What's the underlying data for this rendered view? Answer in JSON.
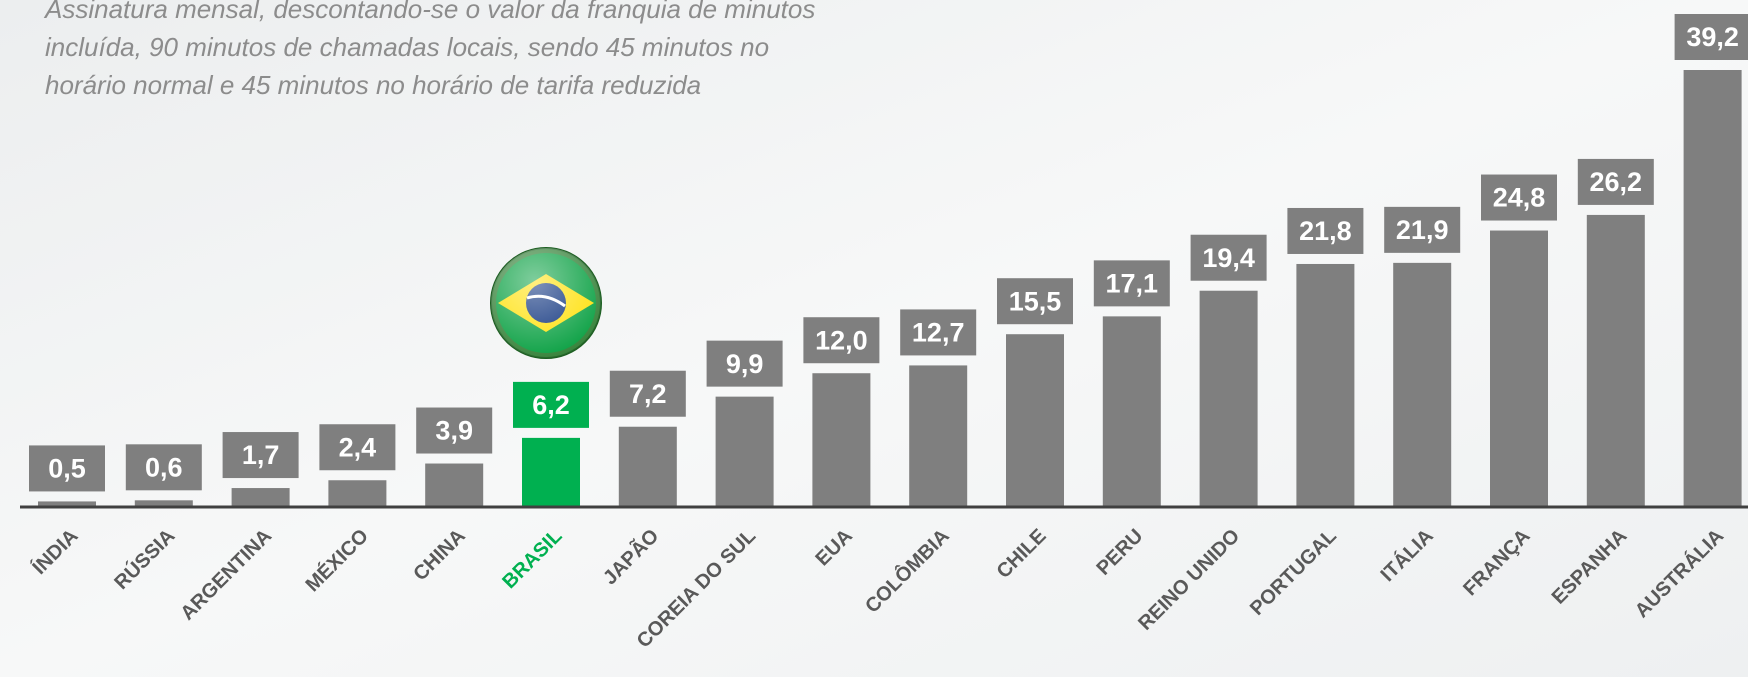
{
  "chart_data": {
    "type": "bar",
    "annotations": [
      "Assinatura mensal, descontando-se o valor da franquia de minutos",
      "incluída, 90 minutos de chamadas locais, sendo 45 minutos no",
      "horário normal e 45 minutos no horário de tarifa reduzida"
    ],
    "categories": [
      "ÍNDIA",
      "RÚSSIA",
      "ARGENTINA",
      "MÉXICO",
      "CHINA",
      "BRASIL",
      "JAPÃO",
      "COREIA DO SUL",
      "EUA",
      "COLÔMBIA",
      "CHILE",
      "PERU",
      "REINO UNIDO",
      "PORTUGAL",
      "ITÁLIA",
      "FRANÇA",
      "ESPANHA",
      "AUSTRÁLIA"
    ],
    "values": [
      0.5,
      0.6,
      1.7,
      2.4,
      3.9,
      6.2,
      7.2,
      9.9,
      12.0,
      12.7,
      15.5,
      17.1,
      19.4,
      21.8,
      21.9,
      24.8,
      26.2,
      39.2
    ],
    "value_labels": [
      "0,5",
      "0,6",
      "1,7",
      "2,4",
      "3,9",
      "6,2",
      "7,2",
      "9,9",
      "12,0",
      "12,7",
      "15,5",
      "17,1",
      "19,4",
      "21,8",
      "21,9",
      "24,8",
      "26,2",
      "39,2"
    ],
    "colors": [
      "#7f7f7f",
      "#7f7f7f",
      "#7f7f7f",
      "#7f7f7f",
      "#7f7f7f",
      "#00b050",
      "#7f7f7f",
      "#7f7f7f",
      "#7f7f7f",
      "#7f7f7f",
      "#7f7f7f",
      "#7f7f7f",
      "#7f7f7f",
      "#7f7f7f",
      "#7f7f7f",
      "#7f7f7f",
      "#7f7f7f",
      "#7f7f7f"
    ],
    "category_label_colors": [
      "#595959",
      "#595959",
      "#595959",
      "#595959",
      "#595959",
      "#00b050",
      "#595959",
      "#595959",
      "#595959",
      "#595959",
      "#595959",
      "#595959",
      "#595959",
      "#595959",
      "#595959",
      "#595959",
      "#595959",
      "#595959"
    ]
  }
}
